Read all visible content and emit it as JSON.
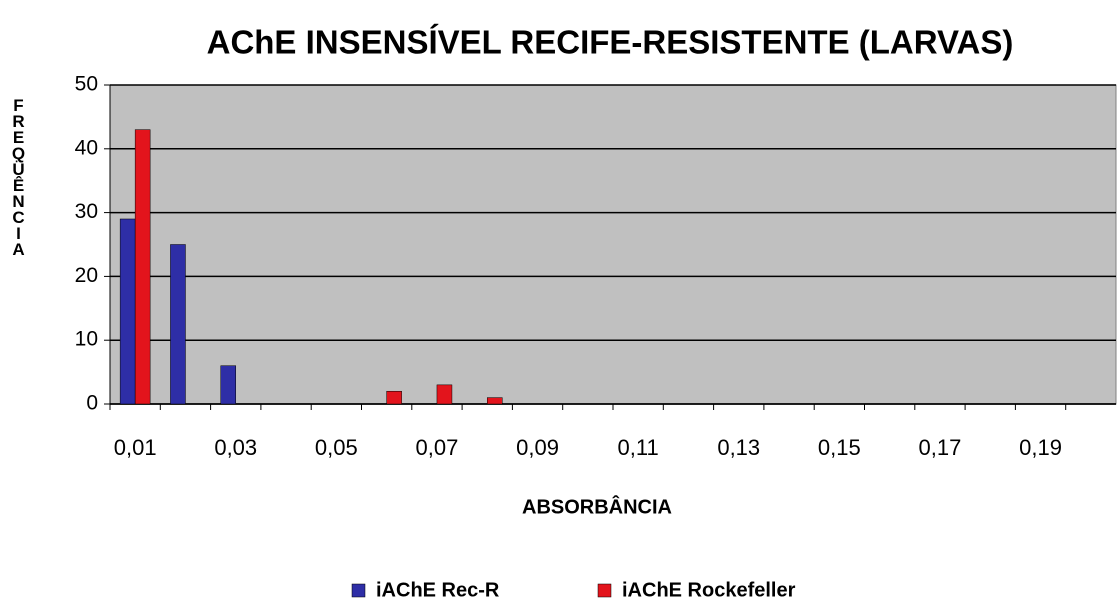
{
  "chart_data": {
    "type": "bar",
    "title": "AChE INSENSÍVEL RECIFE-RESISTENTE (LARVAS)",
    "x_label": "ABSORBÂNCIA",
    "y_label": "FREQÜÊNCIA",
    "categories": [
      "0,01",
      null,
      "0,03",
      null,
      "0,05",
      null,
      "0,07",
      null,
      "0,09",
      null,
      "0,11",
      null,
      "0,13",
      null,
      "0,15",
      null,
      "0,17",
      null,
      "0,19",
      null
    ],
    "series": [
      {
        "name": "iAChE Rec-R",
        "color": "#2e2ea6",
        "values": [
          29,
          25,
          6,
          0,
          0,
          0,
          0,
          0,
          0,
          0,
          0,
          0,
          0,
          0,
          0,
          0,
          0,
          0,
          0,
          0
        ]
      },
      {
        "name": "iAChE Rockefeller",
        "color": "#e3141c",
        "values": [
          43,
          0,
          0,
          0,
          0,
          2,
          3,
          1,
          0,
          0,
          0,
          0,
          0,
          0,
          0,
          0,
          0,
          0,
          0,
          0
        ]
      }
    ],
    "ylim": [
      0,
      50
    ],
    "yticks": [
      0,
      10,
      20,
      30,
      40,
      50
    ],
    "grid": true,
    "legend": "bottom",
    "background": "#c0c0c0"
  }
}
